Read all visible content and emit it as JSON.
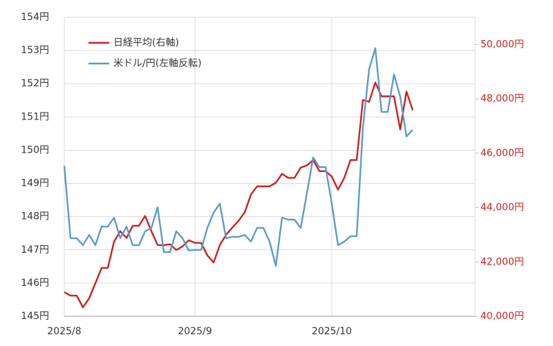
{
  "chart_data": {
    "type": "line",
    "categories": [
      "2025/8",
      null,
      null,
      null,
      null,
      null,
      null,
      null,
      null,
      null,
      null,
      null,
      null,
      null,
      null,
      null,
      null,
      null,
      null,
      null,
      null,
      "2025/9",
      null,
      null,
      null,
      null,
      null,
      null,
      null,
      null,
      null,
      null,
      null,
      null,
      null,
      null,
      null,
      null,
      null,
      null,
      null,
      null,
      null,
      "2025/10",
      null,
      null,
      null,
      null,
      null,
      null,
      null,
      null,
      null,
      null,
      null,
      null,
      null,
      null,
      null,
      null,
      null,
      null,
      null,
      null,
      null,
      null
    ],
    "series": [
      {
        "name": "日経平均(右軸)",
        "color": "#cc1f1f",
        "axis": "y2",
        "values": [
          40890,
          40760,
          40760,
          40330,
          40660,
          41220,
          41780,
          41780,
          42750,
          43130,
          42880,
          43330,
          43330,
          43690,
          43130,
          42620,
          42620,
          42650,
          42440,
          42570,
          42800,
          42700,
          42700,
          42240,
          41980,
          42620,
          43000,
          43260,
          43510,
          43820,
          44480,
          44780,
          44780,
          44780,
          44910,
          45240,
          45090,
          45090,
          45470,
          45550,
          45750,
          45340,
          45340,
          45140,
          44660,
          45090,
          45750,
          45750,
          47960,
          47890,
          48600,
          48090,
          48090,
          48090,
          46870,
          48270,
          47580,
          null,
          null,
          null,
          null,
          null,
          null,
          null,
          null,
          null
        ]
      },
      {
        "name": "米ドル/円(左軸反転)",
        "color": "#5b9bc8",
        "values": [
          149.53,
          147.35,
          147.35,
          147.14,
          147.45,
          147.14,
          147.7,
          147.7,
          147.97,
          147.35,
          147.7,
          147.14,
          147.14,
          147.56,
          147.66,
          148.28,
          146.93,
          146.93,
          147.56,
          147.35,
          146.98,
          147.0,
          147.0,
          147.66,
          148.12,
          148.39,
          147.35,
          147.39,
          147.39,
          147.45,
          147.25,
          147.66,
          147.66,
          147.25,
          146.52,
          147.97,
          147.91,
          147.91,
          147.66,
          148.7,
          149.78,
          149.49,
          149.49,
          148.39,
          147.14,
          147.25,
          147.41,
          147.41,
          150.68,
          152.44,
          153.07,
          151.15,
          151.15,
          152.28,
          151.61,
          150.41,
          150.61,
          null,
          null,
          null,
          null,
          null,
          null,
          null,
          null,
          null
        ]
      }
    ],
    "ylim": [
      145,
      154
    ],
    "yticks": [
      {
        "value": 145,
        "label": "145円"
      },
      {
        "value": 146,
        "label": "146円"
      },
      {
        "value": 147,
        "label": "147円"
      },
      {
        "value": 148,
        "label": "148円"
      },
      {
        "value": 149,
        "label": "149円"
      },
      {
        "value": 150,
        "label": "150円"
      },
      {
        "value": 151,
        "label": "151円"
      },
      {
        "value": 152,
        "label": "152円"
      },
      {
        "value": 153,
        "label": "153円"
      },
      {
        "value": 154,
        "label": "154円"
      }
    ],
    "y2lim": [
      40000,
      51000
    ],
    "y2ticks": [
      {
        "value": 40000,
        "label": "40,000円"
      },
      {
        "value": 42000,
        "label": "42,000円"
      },
      {
        "value": 44000,
        "label": "44,000円"
      },
      {
        "value": 46000,
        "label": "46,000円"
      },
      {
        "value": 48000,
        "label": "48,000円"
      },
      {
        "value": 50000,
        "label": "50,000円"
      }
    ],
    "y2color": "#cc1f1f",
    "grid": true,
    "legend": "upper left"
  }
}
